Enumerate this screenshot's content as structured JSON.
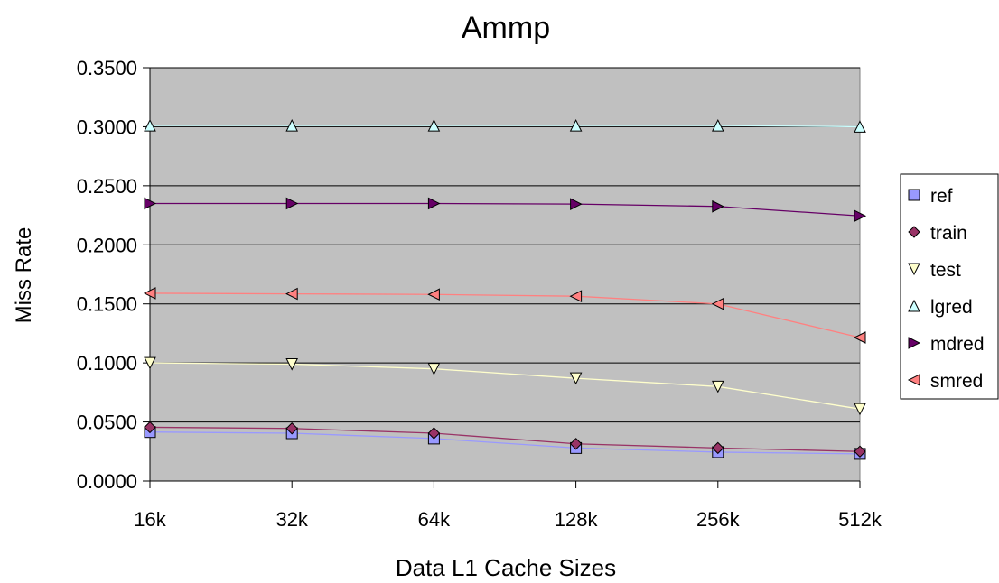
{
  "chart_data": {
    "type": "line",
    "title": "Ammp",
    "xlabel": "Data L1 Cache Sizes",
    "ylabel": "Miss Rate",
    "categories": [
      "16k",
      "32k",
      "64k",
      "128k",
      "256k",
      "512k"
    ],
    "ylim": [
      0,
      0.35
    ],
    "yticks": [
      "0.0000",
      "0.0500",
      "0.1000",
      "0.1500",
      "0.2000",
      "0.2500",
      "0.3000",
      "0.3500"
    ],
    "grid": true,
    "legend_position": "right",
    "plot_background": "#c0c0c0",
    "series": [
      {
        "name": "ref",
        "marker": "square",
        "color": "#9999ff",
        "values": [
          0.0415,
          0.0405,
          0.036,
          0.028,
          0.0245,
          0.023
        ]
      },
      {
        "name": "train",
        "marker": "diamond",
        "color": "#993366",
        "values": [
          0.0455,
          0.0445,
          0.0405,
          0.0315,
          0.028,
          0.025
        ]
      },
      {
        "name": "test",
        "marker": "triangle-down",
        "color": "#ffffcc",
        "values": [
          0.1,
          0.099,
          0.095,
          0.087,
          0.08,
          0.061
        ]
      },
      {
        "name": "lgred",
        "marker": "triangle-up",
        "color": "#ccffff",
        "values": [
          0.301,
          0.301,
          0.301,
          0.301,
          0.301,
          0.3
        ]
      },
      {
        "name": "mdred",
        "marker": "triangle-right",
        "color": "#660066",
        "values": [
          0.235,
          0.235,
          0.235,
          0.2345,
          0.2325,
          0.2245
        ]
      },
      {
        "name": "smred",
        "marker": "triangle-left",
        "color": "#ff8080",
        "values": [
          0.159,
          0.1585,
          0.158,
          0.1565,
          0.15,
          0.1215
        ]
      }
    ]
  }
}
